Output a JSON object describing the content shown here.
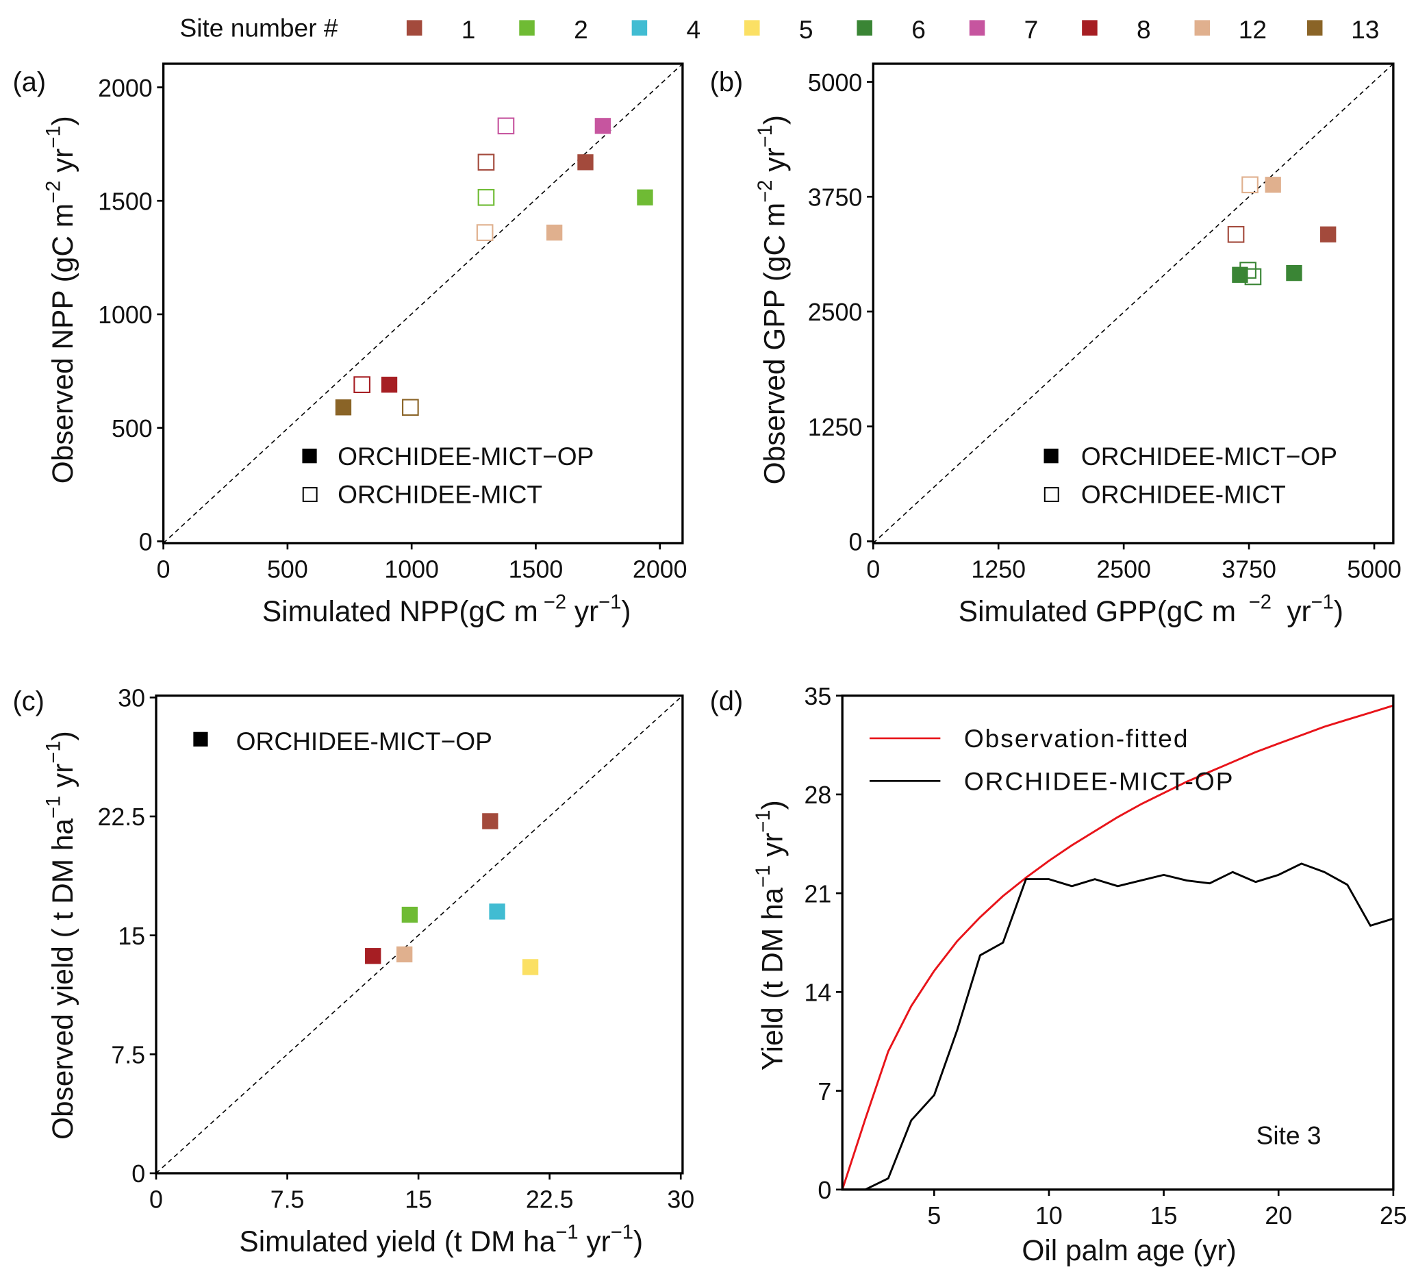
{
  "site_legend": {
    "title": "Site number #",
    "sites": [
      {
        "id": "1",
        "color": "#a34a3c"
      },
      {
        "id": "2",
        "color": "#6fbb34"
      },
      {
        "id": "4",
        "color": "#41bcd2"
      },
      {
        "id": "5",
        "color": "#fbe064"
      },
      {
        "id": "6",
        "color": "#3a8535"
      },
      {
        "id": "7",
        "color": "#c6559f"
      },
      {
        "id": "8",
        "color": "#a61e23"
      },
      {
        "id": "12",
        "color": "#e0b08e"
      },
      {
        "id": "13",
        "color": "#8a6427"
      }
    ]
  },
  "model_legend": {
    "filled": "ORCHIDEE-MICT−OP",
    "open": "ORCHIDEE-MICT"
  },
  "chart_data": [
    {
      "panel": "(a)",
      "type": "scatter",
      "xlabel": "Simulated NPP(gC m",
      "xlabel_sup1": "−2",
      "xlabel_mid": " yr",
      "xlabel_sup2": "−1",
      "xlabel_end": ")",
      "ylabel": "Observed NPP (gC m",
      "ylabel_sup1": "−2",
      "ylabel_mid": " yr",
      "ylabel_sup2": "−1",
      "ylabel_end": ")",
      "xlim": [
        0,
        2100
      ],
      "ylim": [
        0,
        2100
      ],
      "xticks": [
        "0",
        "500",
        "1000",
        "1500",
        "2000"
      ],
      "yticks": [
        "0",
        "500",
        "1000",
        "1500",
        "2000"
      ],
      "diagonal": "1:1",
      "legend_position": "bottom-right",
      "series": [
        {
          "name": "ORCHIDEE-MICT−OP",
          "marker": "filled-square",
          "points": [
            {
              "site": "7",
              "x": 1770,
              "y": 1830
            },
            {
              "site": "1",
              "x": 1700,
              "y": 1670
            },
            {
              "site": "2",
              "x": 1940,
              "y": 1515
            },
            {
              "site": "12",
              "x": 1575,
              "y": 1360
            },
            {
              "site": "8",
              "x": 910,
              "y": 690
            },
            {
              "site": "13",
              "x": 725,
              "y": 590
            }
          ]
        },
        {
          "name": "ORCHIDEE-MICT",
          "marker": "open-square",
          "points": [
            {
              "site": "7",
              "x": 1380,
              "y": 1830
            },
            {
              "site": "1",
              "x": 1300,
              "y": 1670
            },
            {
              "site": "2",
              "x": 1300,
              "y": 1515
            },
            {
              "site": "12",
              "x": 1295,
              "y": 1360
            },
            {
              "site": "8",
              "x": 800,
              "y": 690
            },
            {
              "site": "13",
              "x": 995,
              "y": 590
            }
          ]
        }
      ]
    },
    {
      "panel": "(b)",
      "type": "scatter",
      "xlabel": "Simulated GPP(gC m",
      "xlabel_sup1": "−2",
      "xlabel_mid": " yr",
      "xlabel_sup2": "−1",
      "xlabel_end": ")",
      "ylabel": "Observed GPP (gC m",
      "ylabel_sup1": "−2",
      "ylabel_mid": " yr",
      "ylabel_sup2": "−1",
      "ylabel_end": ")",
      "xlim": [
        0,
        5200
      ],
      "ylim": [
        0,
        5200
      ],
      "xticks": [
        "0",
        "1250",
        "2500",
        "3750",
        "5000"
      ],
      "yticks": [
        "0",
        "1250",
        "2500",
        "3750",
        "5000"
      ],
      "diagonal": "1:1",
      "legend_position": "bottom-right",
      "series": [
        {
          "name": "ORCHIDEE-MICT−OP",
          "marker": "filled-square",
          "points": [
            {
              "site": "12",
              "x": 3990,
              "y": 3880
            },
            {
              "site": "1",
              "x": 4540,
              "y": 3340
            },
            {
              "site": "6",
              "x": 3660,
              "y": 2900
            },
            {
              "site": "6",
              "x": 4200,
              "y": 2920
            }
          ]
        },
        {
          "name": "ORCHIDEE-MICT",
          "marker": "open-square",
          "points": [
            {
              "site": "12",
              "x": 3760,
              "y": 3880
            },
            {
              "site": "1",
              "x": 3620,
              "y": 3340
            },
            {
              "site": "6",
              "x": 3740,
              "y": 2950
            },
            {
              "site": "6",
              "x": 3790,
              "y": 2880
            }
          ]
        }
      ]
    },
    {
      "panel": "(c)",
      "type": "scatter",
      "xlabel": "Simulated yield (t DM ha",
      "xlabel_sup1": "−1",
      "xlabel_mid": " yr",
      "xlabel_sup2": "−1",
      "xlabel_end": ")",
      "ylabel": "Observed yield ( t DM ha",
      "ylabel_sup1": "−1",
      "ylabel_mid": " yr",
      "ylabel_sup2": "−1",
      "ylabel_end": ")",
      "xlim": [
        0,
        30
      ],
      "ylim": [
        0,
        30
      ],
      "xticks": [
        "0",
        "7.5",
        "15",
        "22.5",
        "30"
      ],
      "yticks": [
        "0",
        "7.5",
        "15",
        "22.5",
        "30"
      ],
      "diagonal": "1:1",
      "legend_position": "top-left",
      "series": [
        {
          "name": "ORCHIDEE-MICT−OP",
          "marker": "filled-square",
          "points": [
            {
              "site": "1",
              "x": 19.1,
              "y": 22.2
            },
            {
              "site": "2",
              "x": 14.5,
              "y": 16.3
            },
            {
              "site": "4",
              "x": 19.5,
              "y": 16.5
            },
            {
              "site": "8",
              "x": 12.4,
              "y": 13.7
            },
            {
              "site": "12",
              "x": 14.2,
              "y": 13.8
            },
            {
              "site": "5",
              "x": 21.4,
              "y": 13.0
            }
          ]
        }
      ]
    },
    {
      "panel": "(d)",
      "type": "line",
      "xlabel": "Oil palm age (yr)",
      "ylabel": "Yield (t DM ha",
      "ylabel_sup1": "−1",
      "ylabel_mid": " yr",
      "ylabel_sup2": "−1",
      "ylabel_end": ")",
      "xlim": [
        1,
        25
      ],
      "ylim": [
        0,
        35
      ],
      "xticks": [
        "5",
        "10",
        "15",
        "20",
        "25"
      ],
      "yticks": [
        "0",
        "7",
        "14",
        "21",
        "28",
        "35"
      ],
      "annotation": "Site 3",
      "legend_position": "top-left",
      "series": [
        {
          "name": "Observation-fitted",
          "color": "#e8141a",
          "x": [
            1,
            2,
            3,
            4,
            5,
            6,
            7,
            8,
            9,
            10,
            11,
            12,
            13,
            14,
            15,
            16,
            17,
            18,
            19,
            20,
            21,
            22,
            23,
            24,
            25
          ],
          "y": [
            0,
            5.0,
            9.8,
            13.0,
            15.5,
            17.6,
            19.3,
            20.8,
            22.1,
            23.3,
            24.4,
            25.4,
            26.4,
            27.3,
            28.1,
            28.9,
            29.6,
            30.3,
            31.0,
            31.6,
            32.2,
            32.8,
            33.3,
            33.8,
            34.3
          ]
        },
        {
          "name": "ORCHIDEE-MICT-OP",
          "color": "#000000",
          "x": [
            1,
            2,
            3,
            4,
            5,
            6,
            7,
            8,
            9,
            10,
            11,
            12,
            13,
            14,
            15,
            16,
            17,
            18,
            19,
            20,
            21,
            22,
            23,
            24,
            25
          ],
          "y": [
            0,
            0,
            0.8,
            4.9,
            6.7,
            11.3,
            16.6,
            17.5,
            22.0,
            22.0,
            21.5,
            22.0,
            21.5,
            21.9,
            22.3,
            21.9,
            21.7,
            22.5,
            21.8,
            22.3,
            23.1,
            22.5,
            21.6,
            18.7,
            19.2
          ]
        }
      ]
    }
  ]
}
